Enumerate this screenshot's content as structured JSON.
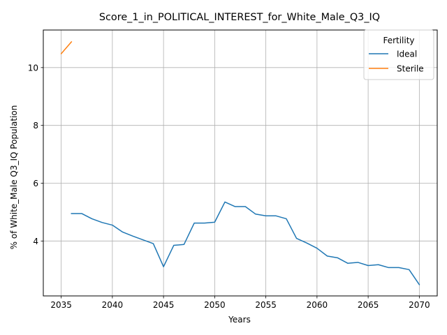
{
  "chart_data": {
    "type": "line",
    "title": "Score_1_in_POLITICAL_INTEREST_for_White_Male_Q3_IQ",
    "xlabel": "Years",
    "ylabel": "% of White_Male Q3_IQ Population",
    "xlim": [
      2033.25,
      2071.75
    ],
    "ylim": [
      2.1,
      11.3
    ],
    "x_ticks": [
      2035,
      2040,
      2045,
      2050,
      2055,
      2060,
      2065,
      2070
    ],
    "y_ticks": [
      4,
      6,
      8,
      10
    ],
    "grid": true,
    "legend": {
      "title": "Fertility",
      "position": "top-right"
    },
    "series": [
      {
        "name": "Ideal",
        "color": "#1f77b4",
        "x": [
          2036,
          2037,
          2038,
          2039,
          2040,
          2041,
          2042,
          2043,
          2044,
          2045,
          2046,
          2047,
          2048,
          2049,
          2050,
          2051,
          2052,
          2053,
          2054,
          2055,
          2056,
          2057,
          2058,
          2059,
          2060,
          2061,
          2062,
          2063,
          2064,
          2065,
          2066,
          2067,
          2068,
          2069,
          2070
        ],
        "y": [
          4.95,
          4.95,
          4.77,
          4.64,
          4.55,
          4.31,
          4.17,
          4.04,
          3.91,
          3.11,
          3.85,
          3.88,
          4.62,
          4.62,
          4.65,
          5.35,
          5.19,
          5.19,
          4.93,
          4.87,
          4.87,
          4.77,
          4.09,
          3.93,
          3.75,
          3.48,
          3.42,
          3.23,
          3.26,
          3.15,
          3.18,
          3.08,
          3.08,
          3.01,
          2.49
        ]
      },
      {
        "name": "Sterile",
        "color": "#ff7f0e",
        "x": [
          2035,
          2036
        ],
        "y": [
          10.48,
          10.89
        ]
      }
    ]
  }
}
